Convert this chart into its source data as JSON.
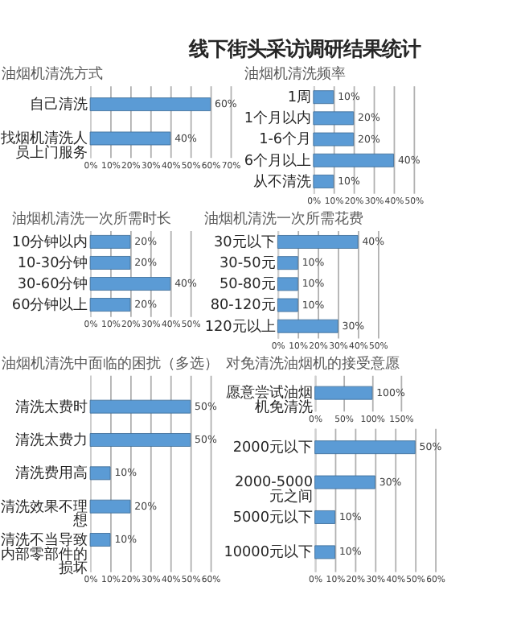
{
  "chart_data": [
    {
      "type": "other",
      "title": "线下街头采访调研结果统计"
    },
    {
      "type": "bar",
      "orientation": "horizontal",
      "title": "油烟机清洗方式",
      "categories": [
        "自己清洗",
        "找烟机清洗人员上门服务"
      ],
      "values": [
        60,
        40
      ],
      "value_labels": [
        "60%",
        "40%"
      ],
      "color": "#5b9bd5",
      "xlim": [
        0,
        70
      ],
      "xticks": [
        {
          "value": 0,
          "label": "0%"
        },
        {
          "value": 10,
          "label": "10%"
        },
        {
          "value": 20,
          "label": "20%"
        },
        {
          "value": 30,
          "label": "30%"
        },
        {
          "value": 40,
          "label": "40%"
        },
        {
          "value": 50,
          "label": "50%"
        },
        {
          "value": 60,
          "label": "60%"
        },
        {
          "value": 70,
          "label": "70%"
        }
      ],
      "grid": "x"
    },
    {
      "type": "bar",
      "orientation": "horizontal",
      "title": "油烟机清洗频率",
      "categories": [
        "1周",
        "1个月以内",
        "1-6个月",
        "6个月以上",
        "从不清洗"
      ],
      "values": [
        10,
        20,
        20,
        40,
        10
      ],
      "value_labels": [
        "10%",
        "20%",
        "20%",
        "40%",
        "10%"
      ],
      "color": "#5b9bd5",
      "xlim": [
        0,
        50
      ],
      "xticks": [
        {
          "value": 0,
          "label": "0%"
        },
        {
          "value": 10,
          "label": "10%"
        },
        {
          "value": 20,
          "label": "20%"
        },
        {
          "value": 30,
          "label": "30%"
        },
        {
          "value": 40,
          "label": "40%"
        },
        {
          "value": 50,
          "label": "50%"
        }
      ],
      "grid": "x"
    },
    {
      "type": "bar",
      "orientation": "horizontal",
      "title": "油烟机清洗一次所需时长",
      "categories": [
        "10分钟以内",
        "10-30分钟",
        "30-60分钟",
        "60分钟以上"
      ],
      "values": [
        20,
        20,
        40,
        20
      ],
      "value_labels": [
        "20%",
        "20%",
        "40%",
        "20%"
      ],
      "color": "#5b9bd5",
      "xlim": [
        0,
        50
      ],
      "xticks": [
        {
          "value": 0,
          "label": "0%"
        },
        {
          "value": 10,
          "label": "10%"
        },
        {
          "value": 20,
          "label": "20%"
        },
        {
          "value": 30,
          "label": "30%"
        },
        {
          "value": 40,
          "label": "40%"
        },
        {
          "value": 50,
          "label": "50%"
        }
      ],
      "grid": "x"
    },
    {
      "type": "bar",
      "orientation": "horizontal",
      "title": "油烟机清洗一次所需花费",
      "categories": [
        "30元以下",
        "30-50元",
        "50-80元",
        "80-120元",
        "120元以上"
      ],
      "values": [
        40,
        10,
        10,
        10,
        30
      ],
      "value_labels": [
        "40%",
        "10%",
        "10%",
        "10%",
        "30%"
      ],
      "color": "#5b9bd5",
      "xlim": [
        0,
        50
      ],
      "xticks": [
        {
          "value": 0,
          "label": "0%"
        },
        {
          "value": 10,
          "label": "10%"
        },
        {
          "value": 20,
          "label": "20%"
        },
        {
          "value": 30,
          "label": "30%"
        },
        {
          "value": 40,
          "label": "40%"
        },
        {
          "value": 50,
          "label": "50%"
        }
      ],
      "grid": "x"
    },
    {
      "type": "bar",
      "orientation": "horizontal",
      "title": "油烟机清洗中面临的困扰（多选）",
      "categories": [
        "清洗太费时",
        "清洗太费力",
        "清洗费用高",
        "清洗效果不理想",
        "清洗不当导致内部零部件的损坏"
      ],
      "values": [
        50,
        50,
        10,
        20,
        10
      ],
      "value_labels": [
        "50%",
        "50%",
        "10%",
        "20%",
        "10%"
      ],
      "color": "#5b9bd5",
      "xlim": [
        0,
        60
      ],
      "xticks": [
        {
          "value": 0,
          "label": "0%"
        },
        {
          "value": 10,
          "label": "10%"
        },
        {
          "value": 20,
          "label": "20%"
        },
        {
          "value": 30,
          "label": "30%"
        },
        {
          "value": 40,
          "label": "40%"
        },
        {
          "value": 50,
          "label": "50%"
        },
        {
          "value": 60,
          "label": "60%"
        }
      ],
      "grid": "x"
    },
    {
      "type": "bar",
      "orientation": "horizontal",
      "title": "对免清洗油烟机的接受意愿",
      "categories": [
        "愿意尝试油烟机免清洗"
      ],
      "values": [
        100
      ],
      "value_labels": [
        "100%"
      ],
      "color": "#5b9bd5",
      "xlim": [
        0,
        150
      ],
      "xticks": [
        {
          "value": 0,
          "label": "0%"
        },
        {
          "value": 50,
          "label": "50%"
        },
        {
          "value": 100,
          "label": "100%"
        },
        {
          "value": 150,
          "label": "150%"
        }
      ],
      "grid": "x"
    },
    {
      "type": "bar",
      "orientation": "horizontal",
      "categories": [
        "2000元以下",
        "2000-5000元之间",
        "5000元以下",
        "10000元以下"
      ],
      "values": [
        50,
        30,
        10,
        10
      ],
      "value_labels": [
        "50%",
        "30%",
        "10%",
        "10%"
      ],
      "color": "#5b9bd5",
      "xlim": [
        0,
        60
      ],
      "xticks": [
        {
          "value": 0,
          "label": "0%"
        },
        {
          "value": 10,
          "label": "10%"
        },
        {
          "value": 20,
          "label": "20%"
        },
        {
          "value": 30,
          "label": "30%"
        },
        {
          "value": 40,
          "label": "40%"
        },
        {
          "value": 50,
          "label": "50%"
        },
        {
          "value": 60,
          "label": "60%"
        }
      ],
      "grid": "x"
    }
  ]
}
